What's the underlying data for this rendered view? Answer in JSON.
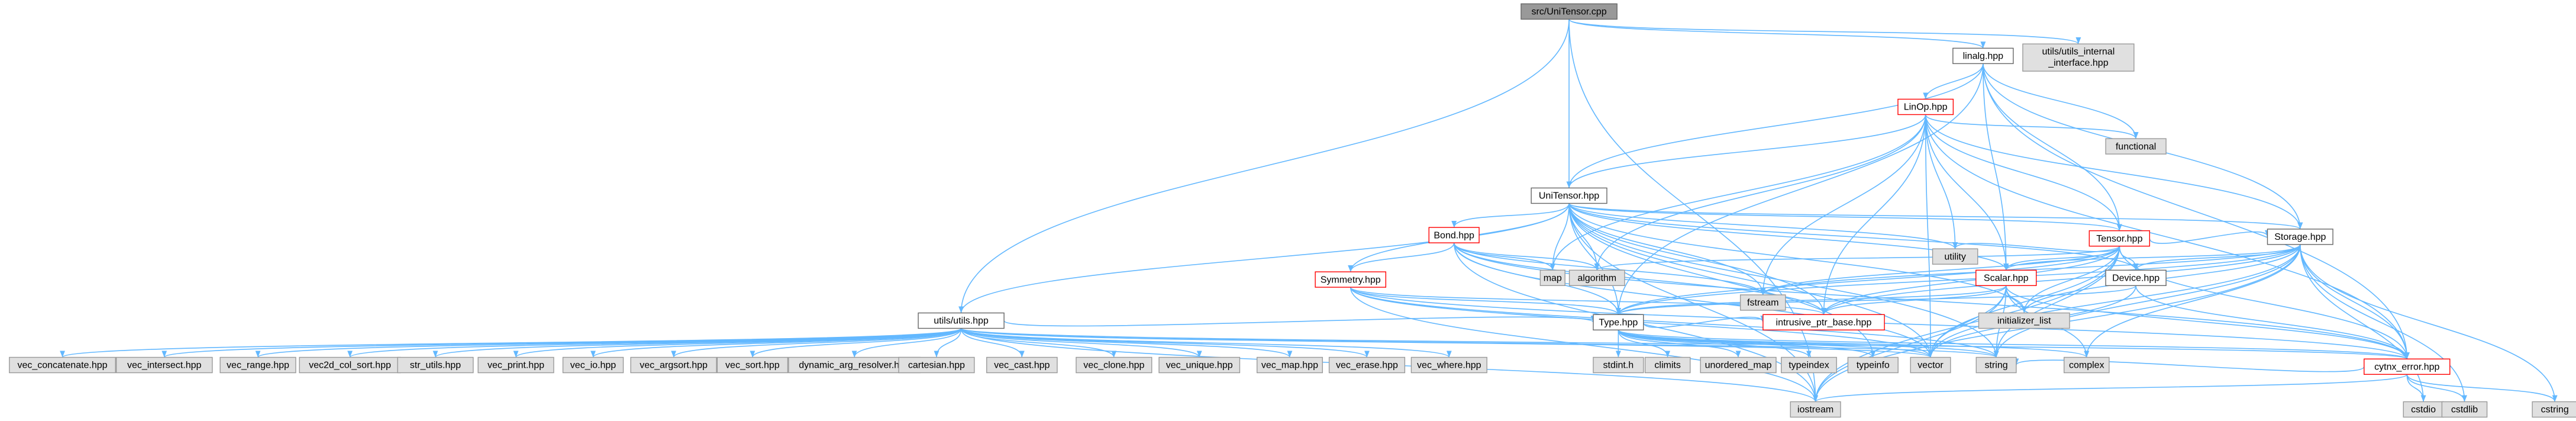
{
  "nodes": [
    {
      "label": "src/UniTensor.cpp"
    },
    {
      "lines": [
        "utils/utils_internal",
        "_interface.hpp"
      ]
    },
    {
      "label": "linalg.hpp"
    },
    {
      "label": "LinOp.hpp"
    },
    {
      "label": "functional"
    },
    {
      "label": "UniTensor.hpp"
    },
    {
      "label": "Tensor.hpp"
    },
    {
      "label": "utility"
    },
    {
      "label": "Storage.hpp"
    },
    {
      "label": "Bond.hpp"
    },
    {
      "label": "map"
    },
    {
      "label": "algorithm"
    },
    {
      "label": "fstream"
    },
    {
      "label": "Device.hpp"
    },
    {
      "label": "Symmetry.hpp"
    },
    {
      "label": "Scalar.hpp"
    },
    {
      "label": "initializer_list"
    },
    {
      "label": "intrusive_ptr_base.hpp"
    },
    {
      "label": "utils/utils.hpp"
    },
    {
      "label": "Type.hpp"
    },
    {
      "label": "cytnx_error.hpp"
    },
    {
      "label": "vec_concatenate.hpp"
    },
    {
      "label": "vec_intersect.hpp"
    },
    {
      "label": "vec_range.hpp"
    },
    {
      "label": "vec2d_col_sort.hpp"
    },
    {
      "label": "str_utils.hpp"
    },
    {
      "label": "vec_print.hpp"
    },
    {
      "label": "vec_io.hpp"
    },
    {
      "label": "vec_argsort.hpp"
    },
    {
      "label": "vec_sort.hpp"
    },
    {
      "label": "dynamic_arg_resolver.hpp"
    },
    {
      "label": "cartesian.hpp"
    },
    {
      "label": "vec_cast.hpp"
    },
    {
      "label": "vec_clone.hpp"
    },
    {
      "label": "vec_unique.hpp"
    },
    {
      "label": "vec_map.hpp"
    },
    {
      "label": "vec_erase.hpp"
    },
    {
      "label": "vec_where.hpp"
    },
    {
      "label": "stdint.h"
    },
    {
      "label": "climits"
    },
    {
      "label": "unordered_map"
    },
    {
      "label": "typeindex"
    },
    {
      "label": "typeinfo"
    },
    {
      "label": "vector"
    },
    {
      "label": "string"
    },
    {
      "label": "complex"
    },
    {
      "label": "iostream"
    },
    {
      "label": "cstdio"
    },
    {
      "label": "cstdlib"
    },
    {
      "label": "cstring"
    }
  ]
}
